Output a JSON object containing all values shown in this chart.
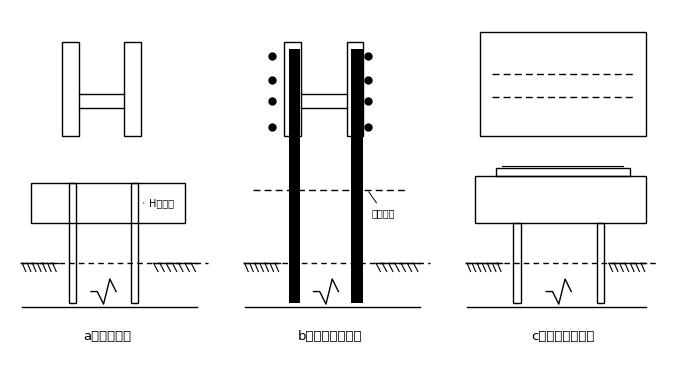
{
  "labels": [
    "a）直接伸入",
    "b）加焊锚固钢筋",
    "c）桩顶平板加强"
  ],
  "bg_color": "#ffffff",
  "line_color": "#000000",
  "lw": 1.0,
  "annotation_a": "H型钢桩",
  "annotation_b": "承台底面",
  "label_fontsize": 9.5
}
